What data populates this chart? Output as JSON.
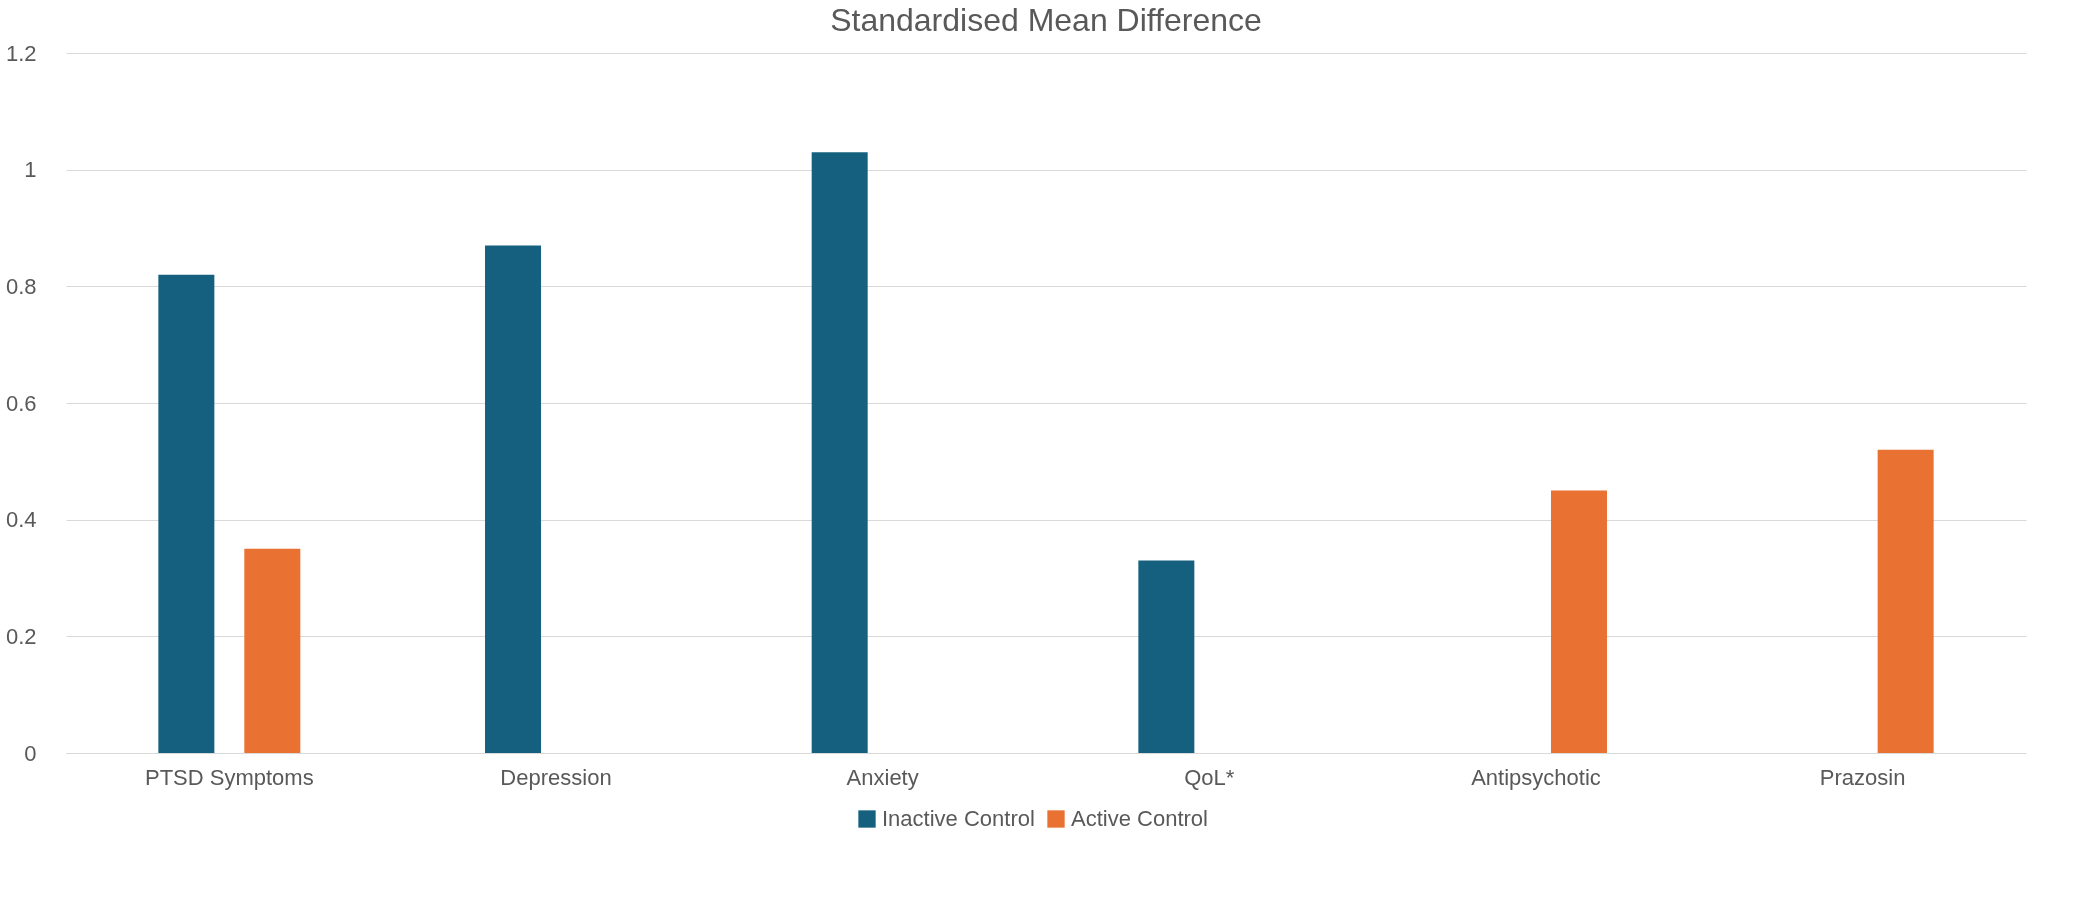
{
  "chart_data": {
    "type": "bar",
    "title": "Standardised Mean Difference",
    "categories": [
      "PTSD Symptoms",
      "Depression",
      "Anxiety",
      "QoL*",
      "Antipsychotic",
      "Prazosin"
    ],
    "series": [
      {
        "name": "Inactive Control",
        "color": "#16607f",
        "values": [
          0.82,
          0.87,
          1.03,
          0.33,
          null,
          null
        ]
      },
      {
        "name": "Active Control",
        "color": "#e97132",
        "values": [
          0.35,
          null,
          null,
          null,
          0.45,
          0.52
        ]
      }
    ],
    "ylim": [
      0,
      1.2
    ],
    "yticks": [
      0,
      0.2,
      0.4,
      0.6,
      0.8,
      1,
      1.2
    ],
    "grid": "y",
    "legend": "bottom"
  }
}
